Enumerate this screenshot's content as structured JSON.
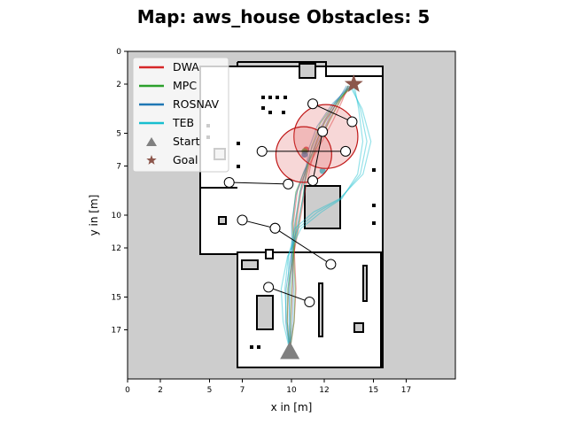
{
  "chart_data": {
    "type": "line",
    "title": "Map: aws_house Obstacles: 5",
    "xlabel": "x in [m]",
    "ylabel": "y in [m]",
    "xlim": [
      0,
      20
    ],
    "ylim": [
      20,
      0
    ],
    "x_ticks": [
      0,
      2,
      5,
      7,
      10,
      12,
      15,
      17
    ],
    "y_ticks": [
      0,
      2,
      5,
      7,
      10,
      12,
      15,
      17
    ],
    "x_tick_labels": [
      "0",
      "2",
      "5",
      "7",
      "10",
      "12",
      "15",
      "17"
    ],
    "y_tick_labels": [
      "0",
      "2",
      "5",
      "7",
      "10",
      "12",
      "15",
      "17"
    ],
    "grid": false,
    "legend_position": "top-left",
    "start": {
      "label": "Start",
      "x": 9.9,
      "y": 18.3,
      "color": "#808080"
    },
    "goal": {
      "label": "Goal",
      "x": 13.8,
      "y": 2.0,
      "color": "#8c564b"
    },
    "series": [
      {
        "name": "DWA",
        "color": "#d62728",
        "x": [
          9.9,
          9.95,
          10.05,
          10.15,
          10.3,
          10.6,
          11.1,
          11.7,
          12.3,
          13.0,
          13.6
        ],
        "y": [
          18.3,
          16.5,
          14.5,
          12.5,
          10.5,
          8.5,
          7.0,
          5.5,
          4.2,
          3.0,
          2.1
        ]
      },
      {
        "name": "MPC",
        "color": "#2ca02c",
        "x": [
          9.9,
          9.95,
          10.0,
          10.1,
          10.25,
          10.5,
          10.9,
          11.4,
          12.0,
          12.8,
          13.6
        ],
        "y": [
          18.3,
          16.5,
          14.5,
          12.5,
          10.5,
          8.6,
          7.2,
          5.8,
          4.4,
          3.1,
          2.1
        ]
      },
      {
        "name": "ROSNAV",
        "color": "#1f77b4",
        "x": [
          9.9,
          9.85,
          9.9,
          10.0,
          10.2,
          10.5,
          10.8,
          11.2,
          11.8,
          12.6,
          13.5
        ],
        "y": [
          18.3,
          16.5,
          14.5,
          12.5,
          10.5,
          8.8,
          7.4,
          6.0,
          4.6,
          3.2,
          2.1
        ]
      },
      {
        "name": "TEB",
        "color": "#17becf",
        "x": [
          9.9,
          9.7,
          9.6,
          9.8,
          10.4,
          11.6,
          13.0,
          14.2,
          14.6,
          14.2,
          13.7
        ],
        "y": [
          18.3,
          16.5,
          14.5,
          12.5,
          10.8,
          9.8,
          9.0,
          7.5,
          5.5,
          3.5,
          2.1
        ]
      }
    ],
    "obstacles": [
      {
        "from": [
          11.3,
          3.2
        ],
        "to": [
          13.7,
          4.3
        ]
      },
      {
        "from": [
          11.9,
          4.9
        ],
        "to": [
          11.3,
          7.9
        ]
      },
      {
        "from": [
          8.2,
          6.1
        ],
        "to": [
          13.3,
          6.1
        ]
      },
      {
        "from": [
          6.2,
          8.0
        ],
        "to": [
          9.8,
          8.1
        ]
      },
      {
        "from": [
          7.0,
          10.3
        ],
        "to": [
          9.0,
          10.8
        ]
      },
      {
        "from": [
          9.0,
          10.8
        ],
        "to": [
          12.4,
          13.0
        ]
      },
      {
        "from": [
          8.6,
          14.4
        ],
        "to": [
          11.1,
          15.3
        ]
      }
    ],
    "robot_circles": [
      {
        "x": 12.1,
        "y": 5.2,
        "r": 1.95
      },
      {
        "x": 10.75,
        "y": 6.3,
        "r": 1.7
      }
    ]
  }
}
